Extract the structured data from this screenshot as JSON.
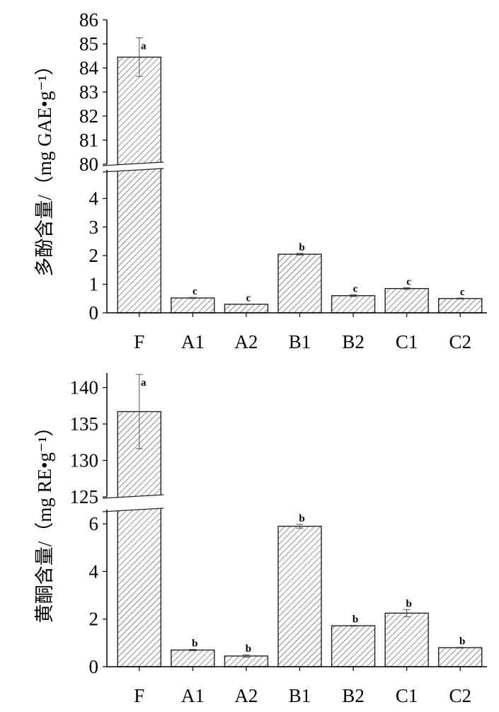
{
  "chart_data": [
    {
      "type": "bar",
      "ylabel": "多酚含量/（mg GAE•g⁻¹）",
      "categories": [
        "F",
        "A1",
        "A2",
        "B1",
        "B2",
        "C1",
        "C2"
      ],
      "values": [
        84.45,
        0.52,
        0.3,
        2.05,
        0.6,
        0.85,
        0.5
      ],
      "errors": [
        0.8,
        0.02,
        0.01,
        0.03,
        0.03,
        0.03,
        0.02
      ],
      "significance": [
        "a",
        "c",
        "c",
        "b",
        "c",
        "c",
        "c"
      ],
      "axis_break": {
        "lower": 5,
        "upper": 80
      },
      "lower_ticks": [
        "0",
        "1",
        "2",
        "3",
        "4"
      ],
      "upper_ticks": [
        "80",
        "81",
        "82",
        "83",
        "84",
        "85",
        "86"
      ],
      "ylim_lower": [
        0,
        5
      ],
      "ylim_upper": [
        80,
        86
      ],
      "hatch": "diagonal"
    },
    {
      "type": "bar",
      "ylabel": "黄酮含量/（mg RE•g⁻¹）",
      "categories": [
        "F",
        "A1",
        "A2",
        "B1",
        "B2",
        "C1",
        "C2"
      ],
      "values": [
        136.7,
        0.7,
        0.45,
        5.9,
        1.72,
        2.25,
        0.8
      ],
      "errors": [
        5.1,
        0.03,
        0.05,
        0.08,
        0.02,
        0.15,
        0.02
      ],
      "significance": [
        "a",
        "b",
        "b",
        "b",
        "b",
        "b",
        "b"
      ],
      "axis_break": {
        "lower": 6.6,
        "upper": 125
      },
      "lower_ticks": [
        "0",
        "2",
        "4",
        "6"
      ],
      "upper_ticks": [
        "125",
        "130",
        "135",
        "140"
      ],
      "ylim_lower": [
        0,
        6.6
      ],
      "ylim_upper": [
        125,
        142
      ],
      "hatch": "diagonal"
    }
  ]
}
